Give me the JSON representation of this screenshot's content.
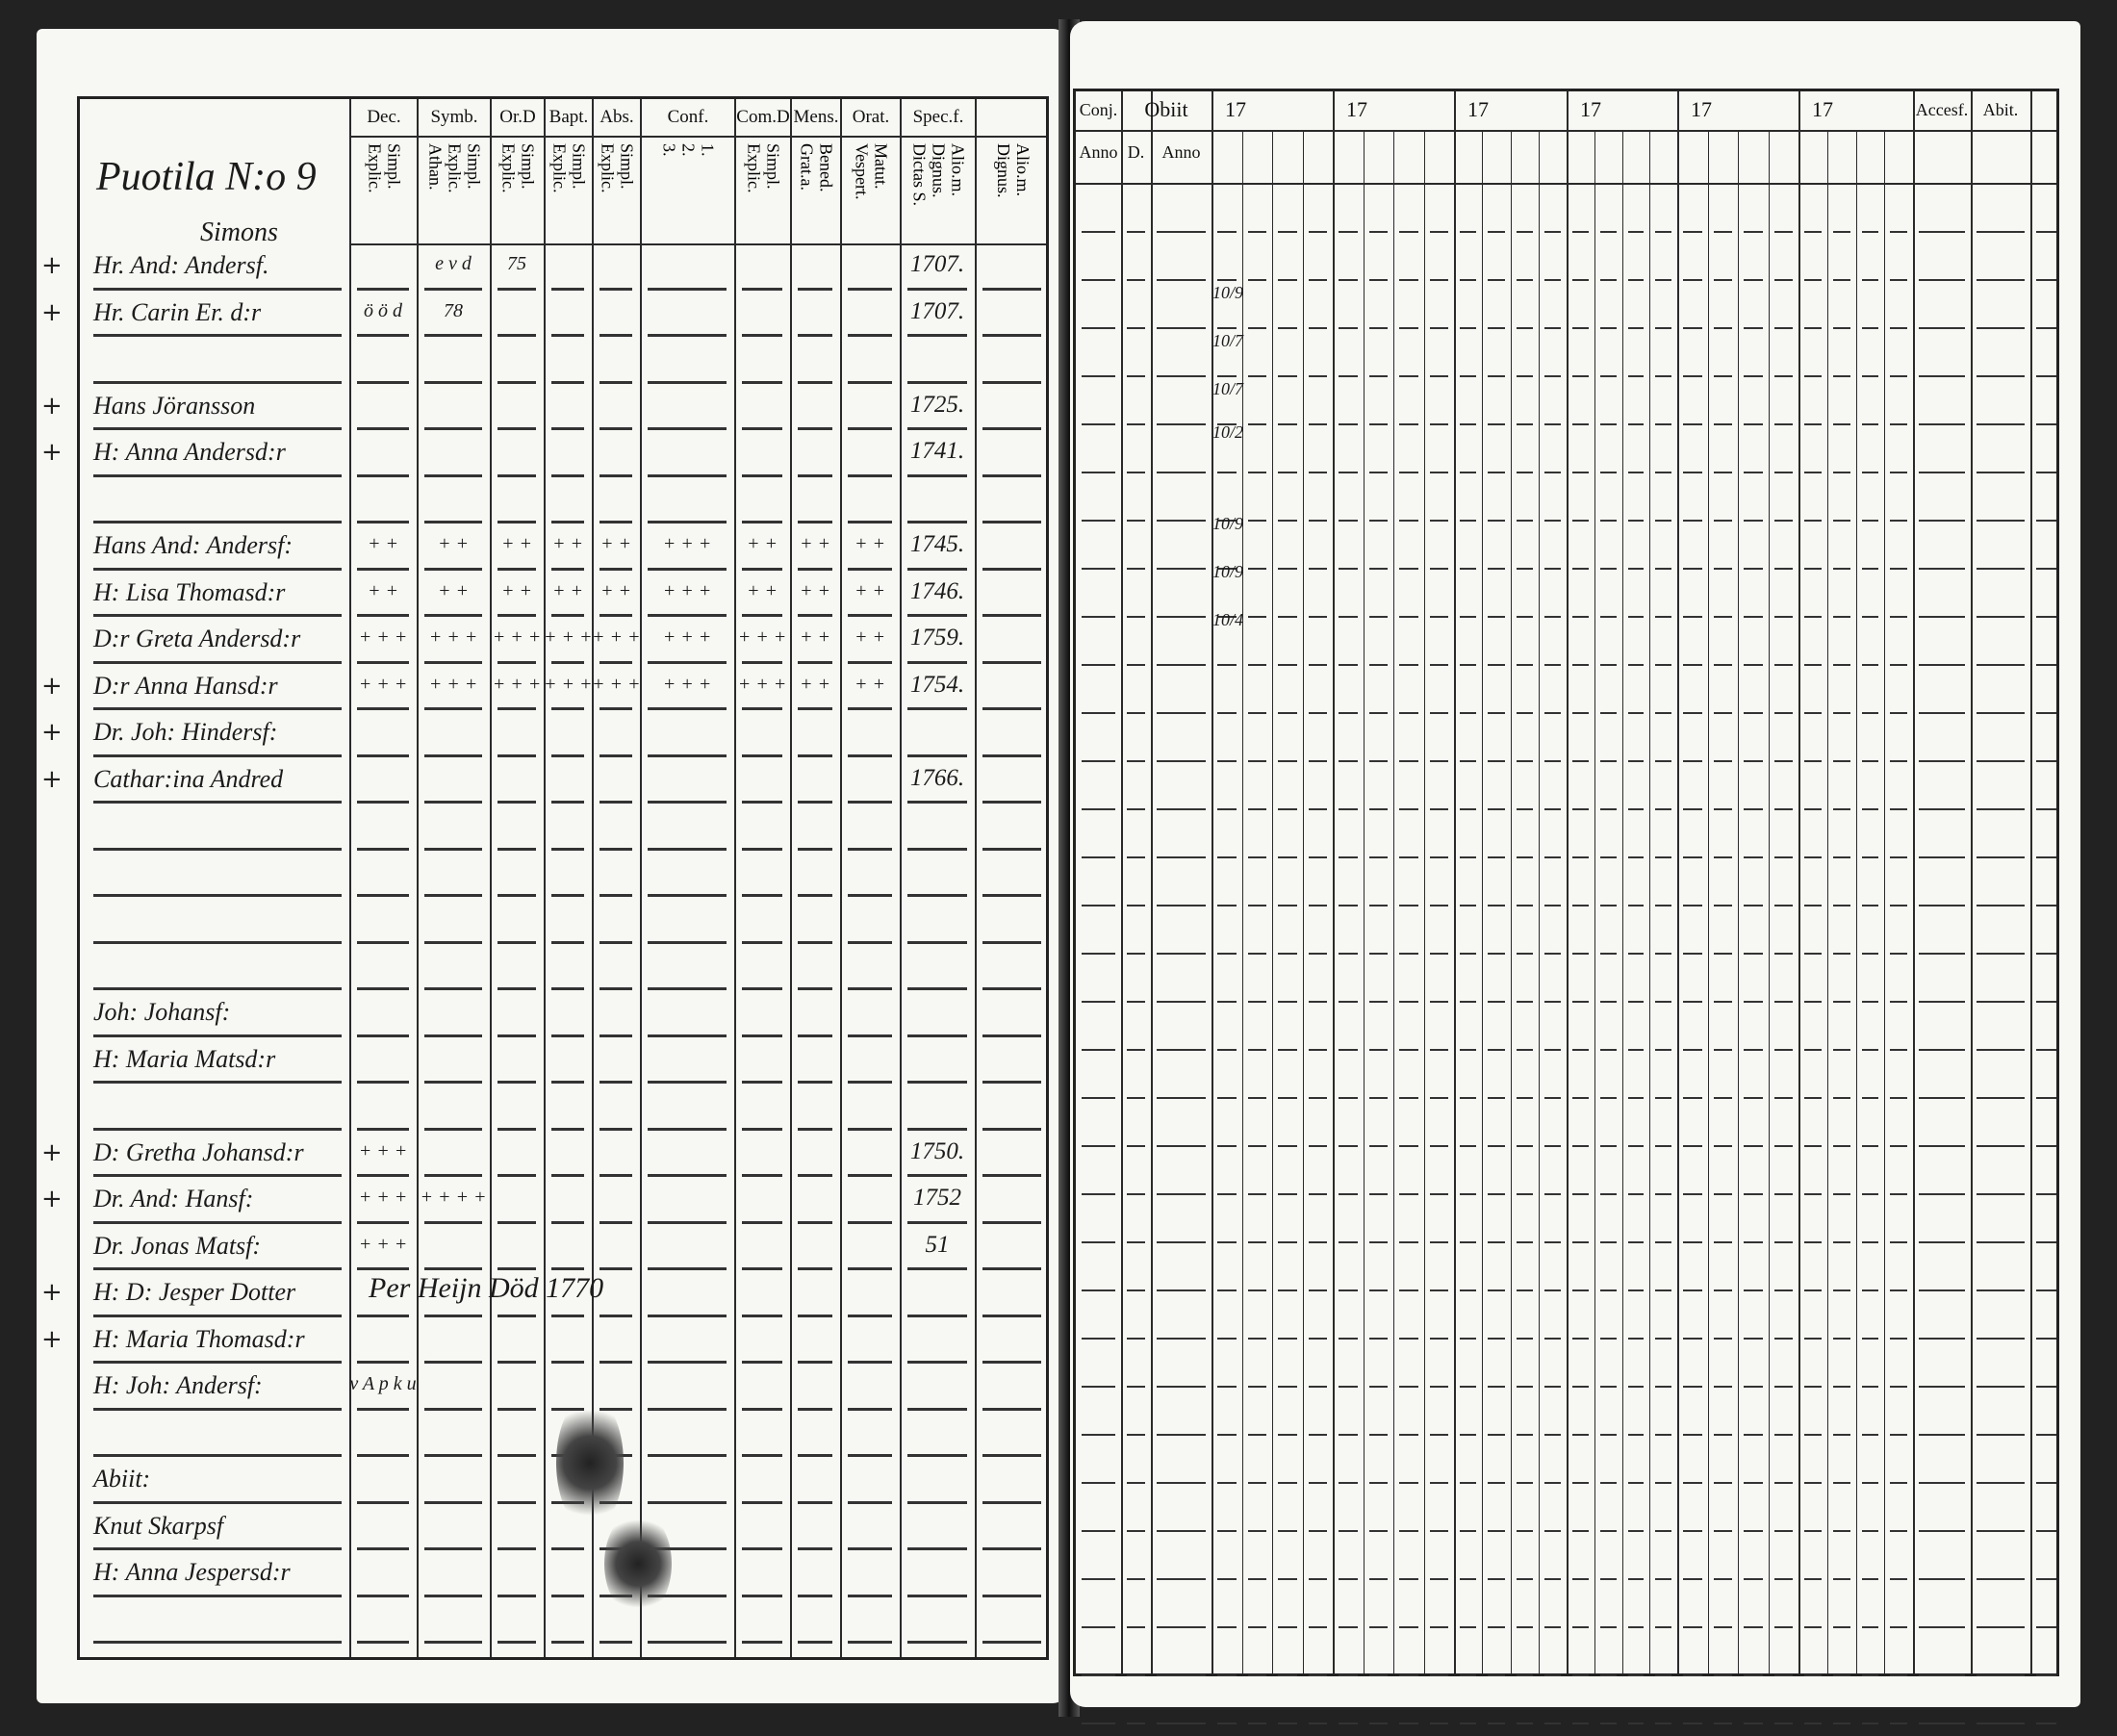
{
  "left_page": {
    "title": "Puotila N:o 9",
    "subtitle": "Simons",
    "columns": [
      {
        "top": "Dec.",
        "sub": [
          "Explic.",
          "Simpl."
        ]
      },
      {
        "top": "Symb.",
        "sub": [
          "Athan.",
          "Explic.",
          "Simpl."
        ]
      },
      {
        "top": "Or.D",
        "sub": [
          "Explic.",
          "Simpl."
        ]
      },
      {
        "top": "Bapt.",
        "sub": [
          "Explic.",
          "Simpl."
        ]
      },
      {
        "top": "Abs.",
        "sub": [
          "Explic.",
          "Simpl."
        ]
      },
      {
        "top": "Conf.",
        "sub": [
          "3.",
          "2.",
          "1."
        ]
      },
      {
        "top": "Com.D",
        "sub": [
          "Explic.",
          "Simpl."
        ]
      },
      {
        "top": "Mens.",
        "sub": [
          "Grat.a.",
          "Bened."
        ]
      },
      {
        "top": "Orat.",
        "sub": [
          "Vespert.",
          "Matut."
        ]
      },
      {
        "top": "Spec.f.",
        "sub": [
          "Dictas S.",
          "Dignus.",
          "Alio.m."
        ]
      },
      {
        "top": "",
        "sub": [
          "Dignus.",
          "Alio.m."
        ]
      }
    ],
    "rows": [
      {
        "mark": "+",
        "name": "Hr. And: Andersf.",
        "cells": [
          "",
          "e v d",
          "75",
          "",
          "",
          "",
          "",
          "",
          "",
          "1707.",
          ""
        ]
      },
      {
        "mark": "+",
        "name": "Hr. Carin Er. d:r",
        "cells": [
          "ö ö d",
          "78",
          "",
          "",
          "",
          "",
          "",
          "",
          "",
          "1707.",
          ""
        ]
      },
      {
        "mark": "",
        "name": "",
        "cells": []
      },
      {
        "mark": "+",
        "name": "Hans Jöransson",
        "cells": [
          "",
          "",
          "",
          "",
          "",
          "",
          "",
          "",
          "",
          "1725.",
          ""
        ]
      },
      {
        "mark": "+",
        "name": "H: Anna Andersd:r",
        "cells": [
          "",
          "",
          "",
          "",
          "",
          "",
          "",
          "",
          "",
          "1741.",
          ""
        ]
      },
      {
        "mark": "",
        "name": "",
        "cells": []
      },
      {
        "mark": "",
        "name": "Hans And: Andersf:",
        "cells": [
          "+ +",
          "+ +",
          "+ +",
          "+ +",
          "+ +",
          "+ + +",
          "+ +",
          "+ +",
          "+ +",
          "1745.",
          ""
        ]
      },
      {
        "mark": "",
        "name": "H: Lisa Thomasd:r",
        "cells": [
          "+ +",
          "+ +",
          "+ +",
          "+ +",
          "+ +",
          "+ + +",
          "+ +",
          "+ +",
          "+ +",
          "1746.",
          ""
        ]
      },
      {
        "mark": "",
        "name": "D:r Greta Andersd:r",
        "cells": [
          "+ + +",
          "+ + +",
          "+ + +",
          "+ + +",
          "+ + +",
          "+ + +",
          "+ + +",
          "+ +",
          "+ +",
          "1759.",
          ""
        ]
      },
      {
        "mark": "+",
        "name": "D:r Anna Hansd:r",
        "cells": [
          "+ + +",
          "+ + +",
          "+ + +",
          "+ + +",
          "+ + +",
          "+ + +",
          "+ + +",
          "+ +",
          "+ +",
          "1754.",
          ""
        ]
      },
      {
        "mark": "+",
        "name": "Dr. Joh: Hindersf:",
        "cells": []
      },
      {
        "mark": "+",
        "name": "Cathar:ina Andred",
        "cells": [
          "",
          "",
          "",
          "",
          "",
          "",
          "",
          "",
          "",
          "1766.",
          ""
        ]
      },
      {
        "mark": "",
        "name": "",
        "cells": []
      },
      {
        "mark": "",
        "name": "",
        "cells": []
      },
      {
        "mark": "",
        "name": "",
        "cells": []
      },
      {
        "mark": "",
        "name": "",
        "cells": []
      },
      {
        "mark": "",
        "name": "Joh: Johansf:",
        "cells": []
      },
      {
        "mark": "",
        "name": "H: Maria Matsd:r",
        "cells": []
      },
      {
        "mark": "",
        "name": "",
        "cells": []
      },
      {
        "mark": "+",
        "name": "D: Gretha Johansd:r",
        "cells": [
          "+ + +",
          "",
          "",
          "",
          "",
          "",
          "",
          "",
          "",
          "1750.",
          ""
        ]
      },
      {
        "mark": "+",
        "name": "Dr. And: Hansf:",
        "cells": [
          "+ + +",
          "+ + + +",
          "",
          "",
          "",
          "",
          "",
          "",
          "",
          "1752",
          ""
        ]
      },
      {
        "mark": "",
        "name": "Dr. Jonas Matsf:",
        "cells": [
          "+ + +",
          "",
          "",
          "",
          "",
          "",
          "",
          "",
          "",
          "51",
          ""
        ]
      },
      {
        "mark": "+",
        "name": "H: D: Jesper Dotter",
        "cells": [],
        "note": "Per Heijn Död 1770"
      },
      {
        "mark": "+",
        "name": "H: Maria Thomasd:r",
        "cells": []
      },
      {
        "mark": "",
        "name": "H: Joh: Andersf:",
        "cells": [
          "v A p k u"
        ]
      },
      {
        "mark": "",
        "name": "",
        "cells": []
      },
      {
        "mark": "",
        "name": "Abiit:",
        "cells": []
      },
      {
        "mark": "",
        "name": "Knut Skarpsf",
        "cells": []
      },
      {
        "mark": "",
        "name": "H: Anna Jespersd:r",
        "cells": []
      },
      {
        "mark": "",
        "name": "",
        "cells": []
      }
    ]
  },
  "right_page": {
    "columns": [
      {
        "top": "Conj.",
        "sub": [
          "Anno"
        ]
      },
      {
        "top": "Obiit",
        "sub": [
          "D.",
          "Anno"
        ]
      },
      {
        "top": "17",
        "sub": []
      },
      {
        "top": "17",
        "sub": []
      },
      {
        "top": "17",
        "sub": []
      },
      {
        "top": "17",
        "sub": []
      },
      {
        "top": "17",
        "sub": []
      },
      {
        "top": "17",
        "sub": []
      },
      {
        "top": "Accesf.",
        "sub": []
      },
      {
        "top": "Abit.",
        "sub": []
      }
    ],
    "fractions": [
      "10/9",
      "10/7",
      "10/7",
      "10/2",
      "10/9",
      "10/9",
      "10/4"
    ]
  },
  "colors": {
    "paper": "#f7f7f3",
    "ink": "#1b1b1b",
    "background": "#222222"
  }
}
